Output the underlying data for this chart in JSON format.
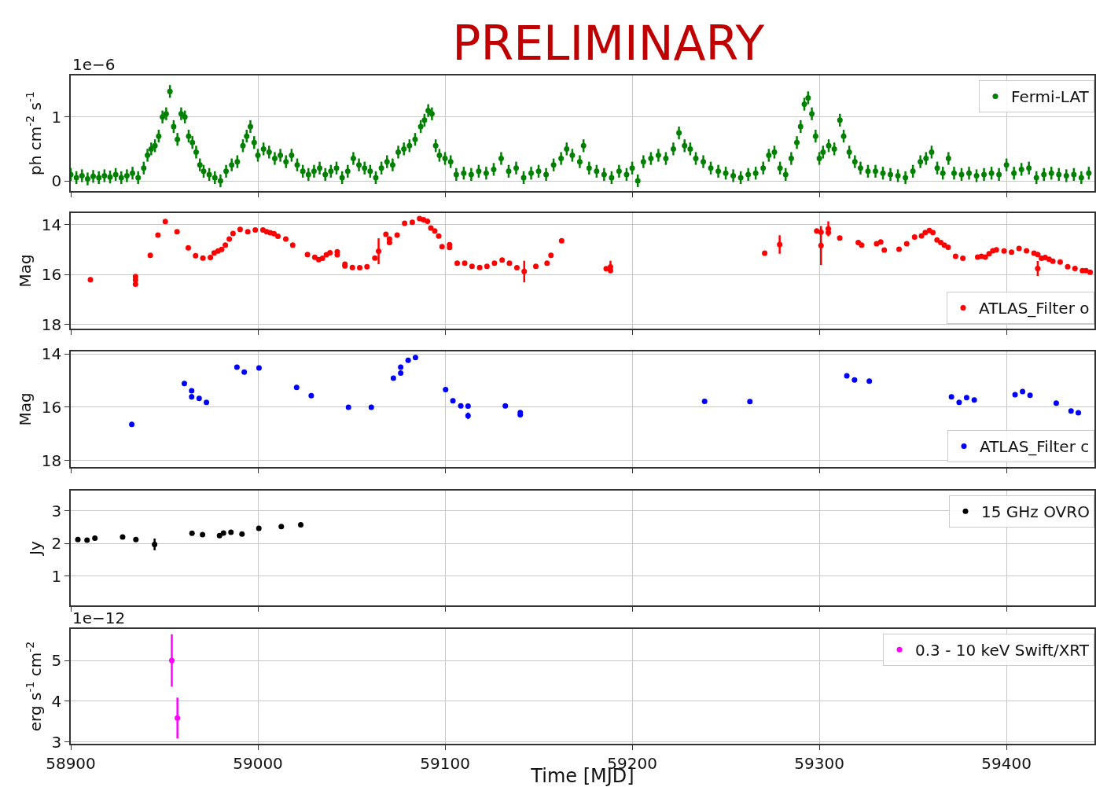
{
  "chart_data": [
    {
      "type": "scatter",
      "title": "PRELIMINARY",
      "ylabel": "ph cm$^{-2}$ s$^{-1}$",
      "annotations": [
        "1e−6"
      ],
      "xlim": [
        58900,
        59447
      ],
      "xticks": [
        58900,
        59000,
        59100,
        59200,
        59300,
        59400
      ],
      "ylim": [
        -0.16,
        1.65
      ],
      "yticks": [
        0,
        1
      ],
      "tick_labels": "y",
      "grid": true,
      "legend": "top right",
      "marker": "circle",
      "series": [
        {
          "name": "Fermi-LAT",
          "color": "#008000",
          "x": [
            58900,
            58903,
            58906,
            58909,
            58912,
            58915,
            58918,
            58921,
            58924,
            58927,
            58930,
            58933,
            58936,
            58939,
            58941,
            58943,
            58945,
            58947,
            58949,
            58951,
            58953,
            58955,
            58957,
            58959,
            58961,
            58963,
            58965,
            58967,
            58969,
            58971,
            58974,
            58977,
            58980,
            58983,
            58986,
            58989,
            58992,
            58994,
            58996,
            58998,
            59000,
            59003,
            59006,
            59009,
            59012,
            59015,
            59018,
            59021,
            59024,
            59027,
            59030,
            59033,
            59036,
            59039,
            59042,
            59045,
            59048,
            59051,
            59054,
            59057,
            59060,
            59063,
            59066,
            59069,
            59072,
            59075,
            59078,
            59081,
            59084,
            59087,
            59089,
            59091,
            59093,
            59095,
            59097,
            59100,
            59103,
            59106,
            59110,
            59114,
            59118,
            59122,
            59126,
            59130,
            59134,
            59138,
            59142,
            59146,
            59150,
            59154,
            59158,
            59162,
            59165,
            59168,
            59172,
            59174,
            59177,
            59181,
            59185,
            59189,
            59193,
            59197,
            59200,
            59203,
            59206,
            59210,
            59214,
            59218,
            59222,
            59225,
            59228,
            59231,
            59234,
            59238,
            59242,
            59246,
            59250,
            59254,
            59258,
            59262,
            59266,
            59270,
            59273,
            59276,
            59279,
            59282,
            59285,
            59288,
            59290,
            59292,
            59294,
            59296,
            59298,
            59300,
            59302,
            59305,
            59308,
            59311,
            59313,
            59316,
            59319,
            59322,
            59326,
            59330,
            59334,
            59338,
            59342,
            59346,
            59350,
            59354,
            59357,
            59360,
            59363,
            59366,
            59369,
            59372,
            59376,
            59380,
            59384,
            59388,
            59392,
            59396,
            59400,
            59404,
            59408,
            59412,
            59416,
            59420,
            59424,
            59428,
            59432,
            59436,
            59440,
            59444
          ],
          "values": [
            0.1,
            0.05,
            0.08,
            0.03,
            0.07,
            0.05,
            0.08,
            0.06,
            0.1,
            0.05,
            0.08,
            0.12,
            0.05,
            0.2,
            0.4,
            0.5,
            0.55,
            0.7,
            1.0,
            1.05,
            1.4,
            0.85,
            0.65,
            1.05,
            1.0,
            0.7,
            0.6,
            0.45,
            0.25,
            0.15,
            0.1,
            0.05,
            0.0,
            0.15,
            0.25,
            0.3,
            0.55,
            0.7,
            0.85,
            0.6,
            0.4,
            0.5,
            0.45,
            0.35,
            0.4,
            0.3,
            0.4,
            0.25,
            0.15,
            0.1,
            0.15,
            0.2,
            0.1,
            0.15,
            0.2,
            0.05,
            0.15,
            0.35,
            0.25,
            0.2,
            0.15,
            0.05,
            0.2,
            0.3,
            0.25,
            0.45,
            0.5,
            0.55,
            0.65,
            0.85,
            0.95,
            1.1,
            1.05,
            0.55,
            0.4,
            0.35,
            0.3,
            0.1,
            0.12,
            0.1,
            0.15,
            0.12,
            0.18,
            0.35,
            0.15,
            0.2,
            0.05,
            0.12,
            0.15,
            0.1,
            0.25,
            0.35,
            0.5,
            0.4,
            0.3,
            0.55,
            0.2,
            0.15,
            0.1,
            0.05,
            0.15,
            0.1,
            0.2,
            0.0,
            0.3,
            0.35,
            0.4,
            0.35,
            0.5,
            0.75,
            0.55,
            0.5,
            0.35,
            0.3,
            0.2,
            0.15,
            0.12,
            0.08,
            0.05,
            0.1,
            0.12,
            0.2,
            0.4,
            0.45,
            0.2,
            0.1,
            0.35,
            0.6,
            0.85,
            1.2,
            1.3,
            1.05,
            0.7,
            0.35,
            0.45,
            0.55,
            0.5,
            0.95,
            0.7,
            0.45,
            0.3,
            0.2,
            0.15,
            0.15,
            0.12,
            0.1,
            0.08,
            0.05,
            0.15,
            0.3,
            0.35,
            0.45,
            0.2,
            0.12,
            0.35,
            0.12,
            0.1,
            0.12,
            0.08,
            0.1,
            0.12,
            0.1,
            0.25,
            0.12,
            0.18,
            0.2,
            0.05,
            0.1,
            0.12,
            0.1,
            0.08,
            0.1,
            0.05,
            0.12
          ],
          "errors": [
            0.1,
            0.1,
            0.1,
            0.1,
            0.1,
            0.1,
            0.1,
            0.1,
            0.1,
            0.1,
            0.1,
            0.1,
            0.1,
            0.1,
            0.1,
            0.1,
            0.1,
            0.1,
            0.1,
            0.1,
            0.1,
            0.1,
            0.1,
            0.1,
            0.1,
            0.1,
            0.1,
            0.1,
            0.1,
            0.1,
            0.1,
            0.1,
            0.1,
            0.1,
            0.1,
            0.1,
            0.1,
            0.1,
            0.1,
            0.1,
            0.1,
            0.1,
            0.1,
            0.1,
            0.1,
            0.1,
            0.1,
            0.1,
            0.1,
            0.1,
            0.1,
            0.1,
            0.1,
            0.1,
            0.1,
            0.1,
            0.1,
            0.1,
            0.1,
            0.1,
            0.1,
            0.1,
            0.1,
            0.1,
            0.1,
            0.1,
            0.1,
            0.1,
            0.1,
            0.1,
            0.1,
            0.1,
            0.1,
            0.1,
            0.1,
            0.1,
            0.1,
            0.1,
            0.1,
            0.1,
            0.1,
            0.1,
            0.1,
            0.1,
            0.1,
            0.1,
            0.1,
            0.1,
            0.1,
            0.1,
            0.1,
            0.1,
            0.1,
            0.1,
            0.1,
            0.1,
            0.1,
            0.1,
            0.1,
            0.1,
            0.1,
            0.1,
            0.1,
            0.1,
            0.1,
            0.1,
            0.1,
            0.1,
            0.1,
            0.1,
            0.1,
            0.1,
            0.1,
            0.1,
            0.1,
            0.1,
            0.1,
            0.1,
            0.1,
            0.1,
            0.1,
            0.1,
            0.1,
            0.1,
            0.1,
            0.1,
            0.1,
            0.1,
            0.1,
            0.1,
            0.1,
            0.1,
            0.1,
            0.1,
            0.1,
            0.1,
            0.1,
            0.1,
            0.1,
            0.1,
            0.1,
            0.1,
            0.1,
            0.1,
            0.1,
            0.1,
            0.1,
            0.1,
            0.1,
            0.1,
            0.1,
            0.1,
            0.1,
            0.1,
            0.1,
            0.1,
            0.1,
            0.1,
            0.1,
            0.1,
            0.1,
            0.1,
            0.1,
            0.1,
            0.1,
            0.1,
            0.1,
            0.1,
            0.1,
            0.1,
            0.1,
            0.1,
            0.1,
            0.1
          ]
        }
      ]
    },
    {
      "type": "scatter",
      "ylabel": "Mag",
      "xlim": [
        58900,
        59447
      ],
      "xticks": [
        58900,
        59000,
        59100,
        59200,
        59300,
        59400
      ],
      "ylim": [
        18.16,
        13.53
      ],
      "yticks": [
        14,
        16,
        18
      ],
      "tick_labels": "y",
      "grid": true,
      "legend": "bottom right",
      "marker": "circle",
      "series": [
        {
          "name": "ATLAS_Filter o",
          "color": "#ff0000",
          "x": [
            58910.5,
            58934.6,
            58934.6,
            58934.6,
            58942.5,
            58946.6,
            58950.5,
            58956.8,
            58962.8,
            58966.7,
            58970.6,
            58974.6,
            58976.6,
            58978.7,
            58980.6,
            58982.6,
            58984.7,
            58986.7,
            58990.5,
            58994.6,
            58998.6,
            59002.7,
            59004.7,
            59006.6,
            59008.6,
            59010.7,
            59014.9,
            59018.6,
            59026.5,
            59030.4,
            59032.5,
            59034.5,
            59036.6,
            59038.5,
            59042.4,
            59042.4,
            59046.5,
            59046.5,
            59050.5,
            59054.4,
            59058.3,
            59062.5,
            59064.5,
            59068.4,
            59070.3,
            59070.3,
            59074.4,
            59078.4,
            59082.5,
            59086.4,
            59088.5,
            59090.6,
            59092.4,
            59094.5,
            59096.6,
            59098.4,
            59102.4,
            59102.4,
            59106.5,
            59110.5,
            59114.4,
            59118.5,
            59122.4,
            59126.4,
            59130.5,
            59134.4,
            59138.4,
            59142.3,
            59148.5,
            59154.5,
            59156.6,
            59162.3,
            59186.1,
            59188.4,
            59188.4,
            59270.8,
            59278.8,
            59298.6,
            59300.9,
            59300.9,
            59304.8,
            59304.8,
            59310.9,
            59320.8,
            59322.6,
            59330.6,
            59332.8,
            59334.7,
            59342.6,
            59346.7,
            59350.9,
            59354.6,
            59356.6,
            59358.8,
            59360.7,
            59362.9,
            59364.9,
            59366.8,
            59368.8,
            59372.8,
            59376.7,
            59384.6,
            59386.6,
            59388.7,
            59390.7,
            59392.7,
            59394.6,
            59398.7,
            59402.7,
            59406.7,
            59410.7,
            59414.7,
            59416.7,
            59416.7,
            59418.7,
            59420.7,
            59422.8,
            59424.8,
            59428.7,
            59432.7,
            59436.6,
            59440.6,
            59442.5,
            59444.7
          ],
          "values": [
            16.2,
            16.07,
            16.21,
            16.38,
            15.22,
            14.41,
            13.87,
            14.28,
            14.92,
            15.24,
            15.33,
            15.31,
            15.13,
            15.05,
            14.99,
            14.81,
            14.57,
            14.35,
            14.18,
            14.28,
            14.21,
            14.21,
            14.28,
            14.32,
            14.36,
            14.46,
            14.57,
            14.81,
            15.19,
            15.3,
            15.4,
            15.34,
            15.2,
            15.12,
            15.08,
            15.2,
            15.58,
            15.65,
            15.71,
            15.72,
            15.68,
            15.33,
            15.06,
            14.38,
            14.57,
            14.71,
            14.41,
            13.94,
            13.9,
            13.75,
            13.8,
            13.86,
            14.13,
            14.25,
            14.45,
            14.88,
            14.8,
            14.91,
            15.54,
            15.54,
            15.66,
            15.71,
            15.66,
            15.54,
            15.41,
            15.54,
            15.72,
            15.87,
            15.66,
            15.54,
            15.22,
            14.64,
            15.76,
            15.69,
            15.83,
            15.14,
            14.79,
            14.25,
            14.29,
            14.83,
            14.16,
            14.31,
            14.53,
            14.71,
            14.81,
            14.76,
            14.69,
            15.01,
            14.98,
            14.76,
            14.49,
            14.44,
            14.31,
            14.23,
            14.31,
            14.61,
            14.71,
            14.81,
            14.9,
            15.26,
            15.34,
            15.29,
            15.26,
            15.29,
            15.16,
            15.04,
            15.0,
            15.05,
            15.1,
            14.95,
            15.04,
            15.14,
            15.19,
            15.75,
            15.34,
            15.31,
            15.38,
            15.46,
            15.49,
            15.68,
            15.75,
            15.84,
            15.84,
            15.9
          ],
          "errors": [
            null,
            null,
            null,
            null,
            null,
            null,
            null,
            null,
            null,
            null,
            null,
            null,
            null,
            null,
            null,
            null,
            null,
            null,
            null,
            null,
            null,
            null,
            null,
            null,
            null,
            null,
            null,
            null,
            null,
            null,
            null,
            null,
            null,
            null,
            null,
            null,
            null,
            null,
            null,
            null,
            null,
            null,
            0.52,
            null,
            null,
            null,
            null,
            null,
            null,
            null,
            null,
            null,
            null,
            null,
            null,
            null,
            null,
            null,
            null,
            null,
            null,
            null,
            null,
            null,
            null,
            null,
            null,
            0.43,
            null,
            null,
            null,
            null,
            null,
            0.25,
            null,
            null,
            0.37,
            null,
            null,
            0.78,
            0.3,
            null,
            null,
            null,
            null,
            null,
            null,
            null,
            null,
            null,
            null,
            null,
            null,
            null,
            null,
            null,
            null,
            null,
            null,
            null,
            null,
            null,
            null,
            null,
            null,
            null,
            null,
            null,
            null,
            null,
            null,
            null,
            null,
            0.3,
            null,
            null,
            null,
            null,
            null,
            null,
            null,
            null,
            null,
            null
          ]
        }
      ]
    },
    {
      "type": "scatter",
      "ylabel": "Mag",
      "xlim": [
        58900,
        59447
      ],
      "xticks": [
        58900,
        59000,
        59100,
        59200,
        59300,
        59400
      ],
      "ylim": [
        18.24,
        13.91
      ],
      "yticks": [
        14,
        16,
        18
      ],
      "tick_labels": "y",
      "grid": true,
      "legend": "bottom right",
      "marker": "circle",
      "series": [
        {
          "name": "ATLAS_Filter c",
          "color": "#0000ff",
          "x": [
            58932.6,
            58960.7,
            58964.6,
            58964.6,
            58968.6,
            58972.5,
            58988.8,
            58992.7,
            59000.6,
            59020.7,
            59028.5,
            59048.4,
            59060.6,
            59072.4,
            59076.3,
            59076.3,
            59080.3,
            59084.2,
            59100.3,
            59104.2,
            59108.4,
            59112.3,
            59112.3,
            59132.2,
            59140.2,
            59140.2,
            59238.7,
            59262.9,
            59314.7,
            59318.8,
            59326.7,
            59370.6,
            59374.7,
            59378.7,
            59382.8,
            59404.6,
            59408.6,
            59412.6,
            59426.6,
            59434.5,
            59438.4
          ],
          "values": [
            16.64,
            15.11,
            15.38,
            15.61,
            15.67,
            15.82,
            14.5,
            14.68,
            14.53,
            15.26,
            15.57,
            16.0,
            16.0,
            14.91,
            14.5,
            14.72,
            14.24,
            14.14,
            15.34,
            15.76,
            15.95,
            15.96,
            16.32,
            15.95,
            16.2,
            16.28,
            15.78,
            15.79,
            14.82,
            14.98,
            15.02,
            15.61,
            15.82,
            15.64,
            15.73,
            15.53,
            15.41,
            15.55,
            15.85,
            16.14,
            16.21
          ],
          "errors": [
            null,
            null,
            null,
            0.1,
            null,
            null,
            null,
            null,
            null,
            null,
            null,
            null,
            null,
            null,
            null,
            null,
            null,
            null,
            null,
            null,
            null,
            null,
            0.12,
            null,
            null,
            null,
            null,
            null,
            null,
            null,
            null,
            null,
            null,
            null,
            null,
            null,
            null,
            null,
            null,
            null,
            null
          ]
        }
      ]
    },
    {
      "type": "scatter",
      "ylabel": "Jy",
      "xlim": [
        58900,
        59447
      ],
      "xticks": [
        58900,
        59000,
        59100,
        59200,
        59300,
        59400
      ],
      "ylim": [
        0.1,
        3.62
      ],
      "yticks": [
        1,
        2,
        3
      ],
      "tick_labels": "y",
      "grid": true,
      "legend": "top right",
      "marker": "circle",
      "series": [
        {
          "name": "15 GHz OVRO",
          "color": "#000000",
          "x": [
            58903.8,
            58908.7,
            58912.9,
            58927.7,
            58934.8,
            58944.8,
            58964.8,
            58970.4,
            58979.5,
            58981.6,
            58985.6,
            58991.5,
            59000.5,
            59012.5,
            59022.9
          ],
          "values": [
            2.12,
            2.1,
            2.16,
            2.2,
            2.12,
            1.97,
            2.31,
            2.27,
            2.24,
            2.32,
            2.34,
            2.29,
            2.46,
            2.52,
            2.57
          ],
          "errors": [
            null,
            null,
            null,
            null,
            null,
            0.18,
            null,
            null,
            null,
            null,
            null,
            null,
            null,
            null,
            null
          ]
        }
      ]
    },
    {
      "type": "scatter",
      "xlabel": "Time [MJD]",
      "ylabel": "erg s$^{-1}$ cm$^{-2}$",
      "annotations": [
        "1e−12"
      ],
      "xlim": [
        58900,
        59447
      ],
      "xticks": [
        58900,
        59000,
        59100,
        59200,
        59300,
        59400
      ],
      "ylim": [
        2.96,
        5.77
      ],
      "yticks": [
        3,
        4,
        5
      ],
      "grid": true,
      "legend": "top right",
      "marker": "circle",
      "series": [
        {
          "name": "0.3 - 10 keV Swift/XRT",
          "color": "#ff00ff",
          "x": [
            58954,
            58957
          ],
          "values": [
            5.0,
            3.59
          ],
          "errors": [
            0.64,
            0.5
          ]
        }
      ]
    }
  ]
}
